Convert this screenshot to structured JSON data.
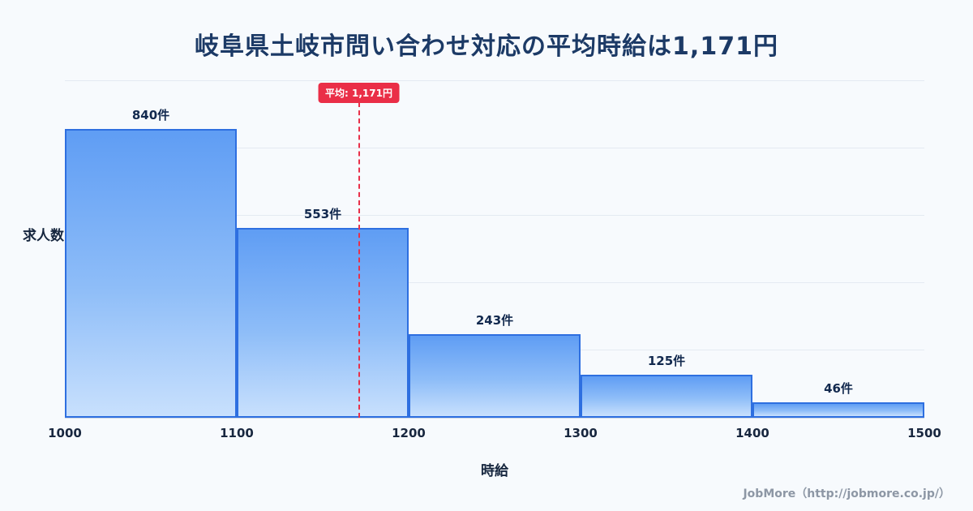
{
  "page": {
    "title": "岐阜県土岐市問い合わせ対応の平均時給は1,171円",
    "footer": "JobMore（http://jobmore.co.jp/）"
  },
  "chart_data": {
    "type": "bar",
    "title": "岐阜県土岐市問い合わせ対応の平均時給は1,171円",
    "xlabel": "時給",
    "ylabel": "求人数",
    "x_ticks": [
      1000,
      1100,
      1200,
      1300,
      1400,
      1500
    ],
    "bins": [
      {
        "range": [
          1000,
          1100
        ],
        "count": 840,
        "label": "840件"
      },
      {
        "range": [
          1100,
          1200
        ],
        "count": 553,
        "label": "553件"
      },
      {
        "range": [
          1200,
          1300
        ],
        "count": 243,
        "label": "243件"
      },
      {
        "range": [
          1300,
          1400
        ],
        "count": 125,
        "label": "125件"
      },
      {
        "range": [
          1400,
          1500
        ],
        "count": 46,
        "label": "46件"
      }
    ],
    "average": {
      "value": 1171,
      "label": "平均: 1,171円"
    },
    "xlim": [
      1000,
      1500
    ],
    "ylim": [
      0,
      980
    ],
    "grid": true,
    "legend": "none",
    "colors": {
      "bar_fill_top": "#5f9df4",
      "bar_fill_bottom": "#c8e0fd",
      "bar_border": "#2e6fe0",
      "average_line": "#e8304a",
      "title_text": "#1c3a66",
      "background": "#f7fafd"
    }
  }
}
